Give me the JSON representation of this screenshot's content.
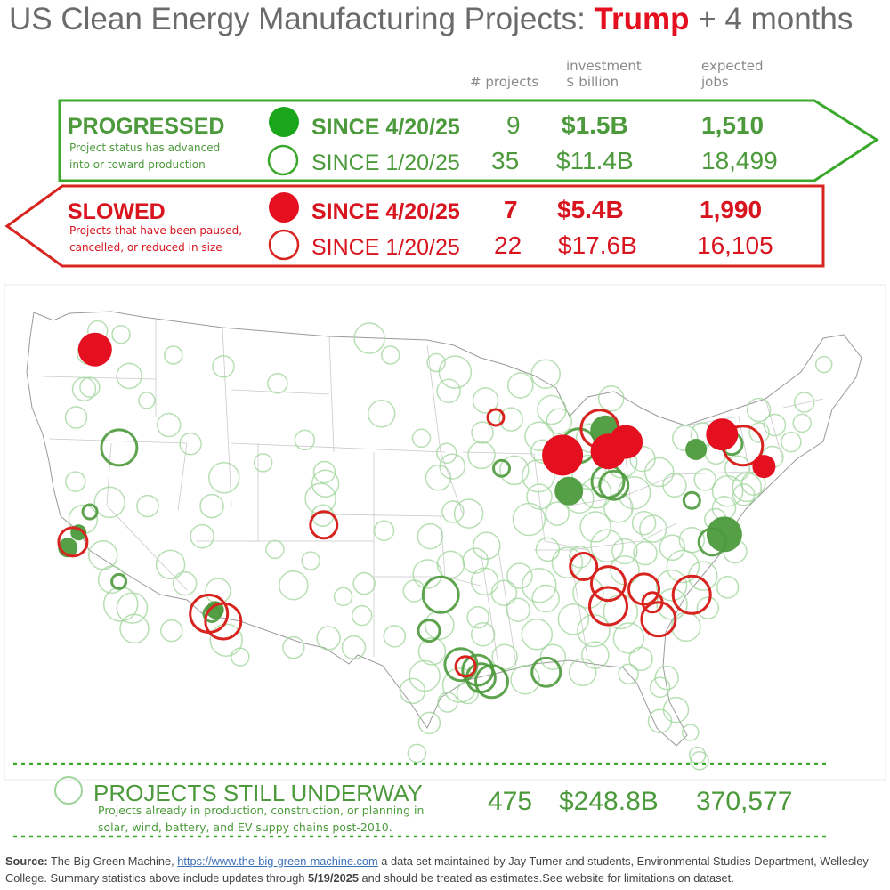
{
  "title": {
    "prefix": "US Clean Energy Manufacturing Projects: ",
    "highlight": "Trump",
    "suffix": " + 4 months"
  },
  "columns": {
    "projects": "# projects",
    "investment_line1": "investment",
    "investment_line2": "$ billion",
    "jobs_line1": "expected",
    "jobs_line2": "jobs"
  },
  "progressed": {
    "heading": "PROGRESSED",
    "desc_line1": "Project status has advanced",
    "desc_line2": "into or toward production",
    "rows": [
      {
        "label": "SINCE 4/20/25",
        "projects": "9",
        "investment": "$1.5B",
        "jobs": "1,510"
      },
      {
        "label": "SINCE 1/20/25",
        "projects": "35",
        "investment": "$11.4B",
        "jobs": "18,499"
      }
    ]
  },
  "slowed": {
    "heading": "SLOWED",
    "desc_line1": "Projects that have been paused,",
    "desc_line2": "cancelled, or reduced in size",
    "rows": [
      {
        "label": "SINCE 4/20/25",
        "projects": "7",
        "investment": "$5.4B",
        "jobs": "1,990"
      },
      {
        "label": "SINCE 1/20/25",
        "projects": "22",
        "investment": "$17.6B",
        "jobs": "16,105"
      }
    ]
  },
  "underway": {
    "heading": "PROJECTS STILL UNDERWAY",
    "desc_line1": "Projects already in production, construction, or planning in",
    "desc_line2": "solar, wind, battery, and EV suppy chains post-2010.",
    "projects": "475",
    "investment": "$248.8B",
    "jobs": "370,577"
  },
  "source": {
    "label": "Source:",
    "text1": " The Big Green Machine, ",
    "link": "https://www.the-big-green-machine.com",
    "text2": " a data set maintained by Jay Turner and students, Environmental Studies Department, Wellesley College. Summary statistics above include updates through ",
    "date": "5/19/2025",
    "text3": " and should be treated as estimates.See website for limitations on dataset."
  },
  "colors": {
    "green": "#4c9a3c",
    "green_light": "#9fd49a",
    "red": "#e4101f",
    "border_green": "#3aa82a",
    "border_red": "#d8241f"
  },
  "map_markers": {
    "slowed_recent": [
      {
        "lat": 47.6,
        "lon": -122.3,
        "r": 19
      },
      {
        "lat": 42.0,
        "lon": -87.8,
        "r": 23
      },
      {
        "lat": 42.2,
        "lon": -84.5,
        "r": 20
      },
      {
        "lat": 42.7,
        "lon": -83.2,
        "r": 19
      },
      {
        "lat": 43.1,
        "lon": -76.2,
        "r": 18
      },
      {
        "lat": 41.4,
        "lon": -73.5,
        "r": 13
      }
    ],
    "slowed_earlier": [
      {
        "lat": 43.4,
        "lon": -85.0,
        "r": 21
      },
      {
        "lat": 42.5,
        "lon": -74.8,
        "r": 22
      },
      {
        "lat": 38.3,
        "lon": -104.7,
        "r": 15
      },
      {
        "lat": 44.0,
        "lon": -92.5,
        "r": 9
      },
      {
        "lat": 37.4,
        "lon": -122.0,
        "r": 16
      },
      {
        "lat": 33.6,
        "lon": -112.2,
        "r": 21
      },
      {
        "lat": 33.2,
        "lon": -111.2,
        "r": 20
      },
      {
        "lat": 36.1,
        "lon": -86.8,
        "r": 15
      },
      {
        "lat": 35.2,
        "lon": -85.2,
        "r": 19
      },
      {
        "lat": 34.0,
        "lon": -85.3,
        "r": 21
      },
      {
        "lat": 34.9,
        "lon": -82.8,
        "r": 17
      },
      {
        "lat": 33.3,
        "lon": -82.0,
        "r": 19
      },
      {
        "lat": 34.6,
        "lon": -79.6,
        "r": 21
      },
      {
        "lat": 34.2,
        "lon": -82.3,
        "r": 11
      },
      {
        "lat": 30.8,
        "lon": -95.0,
        "r": 11
      }
    ],
    "progressed_recent": [
      {
        "lat": 43.3,
        "lon": -84.6,
        "r": 17
      },
      {
        "lat": 40.1,
        "lon": -87.5,
        "r": 16
      },
      {
        "lat": 42.3,
        "lon": -78.2,
        "r": 12
      },
      {
        "lat": 37.8,
        "lon": -76.9,
        "r": 20
      },
      {
        "lat": 37.1,
        "lon": -122.3,
        "r": 11
      },
      {
        "lat": 37.9,
        "lon": -121.7,
        "r": 9
      },
      {
        "lat": 33.8,
        "lon": -111.8,
        "r": 10
      }
    ],
    "progressed_earlier": [
      {
        "lat": 42.4,
        "lon": -119.6,
        "r": 20
      },
      {
        "lat": 42.5,
        "lon": -86.6,
        "r": 19
      },
      {
        "lat": 40.6,
        "lon": -84.7,
        "r": 18
      },
      {
        "lat": 40.4,
        "lon": -84.3,
        "r": 16
      },
      {
        "lat": 42.6,
        "lon": -75.6,
        "r": 12
      },
      {
        "lat": 41.3,
        "lon": -92.2,
        "r": 9
      },
      {
        "lat": 39.0,
        "lon": -121.1,
        "r": 8
      },
      {
        "lat": 39.6,
        "lon": -78.9,
        "r": 9
      },
      {
        "lat": 37.4,
        "lon": -77.8,
        "r": 15
      },
      {
        "lat": 34.6,
        "lon": -96.6,
        "r": 20
      },
      {
        "lat": 32.7,
        "lon": -97.4,
        "r": 12
      },
      {
        "lat": 30.9,
        "lon": -95.3,
        "r": 18
      },
      {
        "lat": 30.0,
        "lon": -93.3,
        "r": 18
      },
      {
        "lat": 30.6,
        "lon": -94.2,
        "r": 17
      },
      {
        "lat": 30.2,
        "lon": -94.0,
        "r": 16
      },
      {
        "lat": 30.5,
        "lon": -89.7,
        "r": 16
      },
      {
        "lat": 33.6,
        "lon": -112.0,
        "r": 9
      },
      {
        "lat": 35.3,
        "lon": -118.5,
        "r": 8
      }
    ],
    "underway": [
      {
        "lat": 47.4,
        "lon": -122.8,
        "r": 12
      },
      {
        "lat": 46.2,
        "lon": -119.5,
        "r": 14
      },
      {
        "lat": 47.3,
        "lon": -116.4,
        "r": 10
      },
      {
        "lat": 45.6,
        "lon": -122.3,
        "r": 11
      },
      {
        "lat": 44.9,
        "lon": -118.0,
        "r": 9
      },
      {
        "lat": 46.7,
        "lon": -112.6,
        "r": 12
      },
      {
        "lat": 48.2,
        "lon": -101.8,
        "r": 17
      },
      {
        "lat": 47.3,
        "lon": -100.2,
        "r": 10
      },
      {
        "lat": 46.4,
        "lon": -95.4,
        "r": 18
      },
      {
        "lat": 45.4,
        "lon": -95.9,
        "r": 13
      },
      {
        "lat": 44.2,
        "lon": -100.8,
        "r": 15
      },
      {
        "lat": 45.7,
        "lon": -90.6,
        "r": 14
      },
      {
        "lat": 46.3,
        "lon": -88.7,
        "r": 16
      },
      {
        "lat": 44.4,
        "lon": -88.4,
        "r": 16
      },
      {
        "lat": 43.9,
        "lon": -91.4,
        "r": 13
      },
      {
        "lat": 43.2,
        "lon": -93.5,
        "r": 12
      },
      {
        "lat": 42.9,
        "lon": -97.9,
        "r": 10
      },
      {
        "lat": 42.1,
        "lon": -96.1,
        "r": 11
      },
      {
        "lat": 41.4,
        "lon": -95.7,
        "r": 14
      },
      {
        "lat": 41.2,
        "lon": -91.3,
        "r": 16
      },
      {
        "lat": 42.2,
        "lon": -89.2,
        "r": 13
      },
      {
        "lat": 40.9,
        "lon": -89.6,
        "r": 18
      },
      {
        "lat": 41.1,
        "lon": -86.0,
        "r": 19
      },
      {
        "lat": 40.0,
        "lon": -85.6,
        "r": 17
      },
      {
        "lat": 39.7,
        "lon": -86.8,
        "r": 16
      },
      {
        "lat": 38.9,
        "lon": -88.4,
        "r": 13
      },
      {
        "lat": 39.2,
        "lon": -84.1,
        "r": 16
      },
      {
        "lat": 40.0,
        "lon": -82.9,
        "r": 18
      },
      {
        "lat": 41.1,
        "lon": -81.0,
        "r": 16
      },
      {
        "lat": 41.8,
        "lon": -82.1,
        "r": 14
      },
      {
        "lat": 40.4,
        "lon": -80.0,
        "r": 13
      },
      {
        "lat": 40.7,
        "lon": -77.8,
        "r": 12
      },
      {
        "lat": 41.3,
        "lon": -75.4,
        "r": 14
      },
      {
        "lat": 40.3,
        "lon": -74.9,
        "r": 16
      },
      {
        "lat": 40.1,
        "lon": -76.3,
        "r": 17
      },
      {
        "lat": 41.9,
        "lon": -72.8,
        "r": 12
      },
      {
        "lat": 42.7,
        "lon": -71.3,
        "r": 11
      },
      {
        "lat": 43.6,
        "lon": -72.3,
        "r": 12
      },
      {
        "lat": 44.4,
        "lon": -73.3,
        "r": 13
      },
      {
        "lat": 44.8,
        "lon": -69.9,
        "r": 11
      },
      {
        "lat": 43.2,
        "lon": -73.5,
        "r": 11
      },
      {
        "lat": 39.2,
        "lon": -76.7,
        "r": 13
      },
      {
        "lat": 38.1,
        "lon": -81.8,
        "r": 15
      },
      {
        "lat": 37.1,
        "lon": -80.6,
        "r": 14
      },
      {
        "lat": 36.1,
        "lon": -80.0,
        "r": 18
      },
      {
        "lat": 35.6,
        "lon": -78.7,
        "r": 16
      },
      {
        "lat": 35.1,
        "lon": -80.9,
        "r": 17
      },
      {
        "lat": 34.1,
        "lon": -81.0,
        "r": 17
      },
      {
        "lat": 32.9,
        "lon": -80.2,
        "r": 16
      },
      {
        "lat": 33.7,
        "lon": -84.5,
        "r": 19
      },
      {
        "lat": 32.3,
        "lon": -84.1,
        "r": 17
      },
      {
        "lat": 32.7,
        "lon": -86.4,
        "r": 18
      },
      {
        "lat": 33.3,
        "lon": -87.7,
        "r": 17
      },
      {
        "lat": 34.7,
        "lon": -86.6,
        "r": 17
      },
      {
        "lat": 35.1,
        "lon": -89.9,
        "r": 19
      },
      {
        "lat": 36.3,
        "lon": -87.9,
        "r": 17
      },
      {
        "lat": 37.2,
        "lon": -85.1,
        "r": 18
      },
      {
        "lat": 38.2,
        "lon": -85.8,
        "r": 17
      },
      {
        "lat": 36.9,
        "lon": -83.9,
        "r": 14
      },
      {
        "lat": 35.9,
        "lon": -84.0,
        "r": 16
      },
      {
        "lat": 36.6,
        "lon": -87.0,
        "r": 12
      },
      {
        "lat": 31.4,
        "lon": -86.4,
        "r": 15
      },
      {
        "lat": 30.5,
        "lon": -87.3,
        "r": 15
      },
      {
        "lat": 31.2,
        "lon": -83.4,
        "r": 13
      },
      {
        "lat": 30.2,
        "lon": -81.8,
        "r": 13
      },
      {
        "lat": 28.5,
        "lon": -81.4,
        "r": 14
      },
      {
        "lat": 27.3,
        "lon": -80.6,
        "r": 9
      },
      {
        "lat": 26.1,
        "lon": -80.3,
        "r": 9
      },
      {
        "lat": 32.5,
        "lon": -90.2,
        "r": 17
      },
      {
        "lat": 31.3,
        "lon": -89.2,
        "r": 14
      },
      {
        "lat": 34.4,
        "lon": -89.5,
        "r": 15
      },
      {
        "lat": 33.8,
        "lon": -91.4,
        "r": 13
      },
      {
        "lat": 35.6,
        "lon": -91.2,
        "r": 14
      },
      {
        "lat": 35.3,
        "lon": -93.6,
        "r": 15
      },
      {
        "lat": 36.4,
        "lon": -94.2,
        "r": 14
      },
      {
        "lat": 37.2,
        "lon": -93.4,
        "r": 15
      },
      {
        "lat": 38.6,
        "lon": -90.4,
        "r": 18
      },
      {
        "lat": 38.9,
        "lon": -94.6,
        "r": 16
      },
      {
        "lat": 37.7,
        "lon": -97.3,
        "r": 14
      },
      {
        "lat": 35.7,
        "lon": -97.5,
        "r": 16
      },
      {
        "lat": 36.2,
        "lon": -95.9,
        "r": 15
      },
      {
        "lat": 34.8,
        "lon": -98.4,
        "r": 12
      },
      {
        "lat": 33.0,
        "lon": -96.7,
        "r": 16
      },
      {
        "lat": 31.6,
        "lon": -97.2,
        "r": 15
      },
      {
        "lat": 30.3,
        "lon": -97.7,
        "r": 17
      },
      {
        "lat": 29.5,
        "lon": -98.5,
        "r": 14
      },
      {
        "lat": 29.8,
        "lon": -95.4,
        "r": 19
      },
      {
        "lat": 30.1,
        "lon": -91.1,
        "r": 16
      },
      {
        "lat": 31.3,
        "lon": -92.4,
        "r": 14
      },
      {
        "lat": 32.5,
        "lon": -93.8,
        "r": 13
      },
      {
        "lat": 27.8,
        "lon": -97.4,
        "r": 12
      },
      {
        "lat": 26.2,
        "lon": -98.2,
        "r": 10
      },
      {
        "lat": 31.8,
        "lon": -102.4,
        "r": 13
      },
      {
        "lat": 35.2,
        "lon": -101.8,
        "r": 12
      },
      {
        "lat": 32.4,
        "lon": -99.7,
        "r": 12
      },
      {
        "lat": 31.8,
        "lon": -106.4,
        "r": 12
      },
      {
        "lat": 35.1,
        "lon": -106.6,
        "r": 16
      },
      {
        "lat": 32.3,
        "lon": -104.1,
        "r": 13
      },
      {
        "lat": 36.4,
        "lon": -105.5,
        "r": 10
      },
      {
        "lat": 39.7,
        "lon": -105.0,
        "r": 17
      },
      {
        "lat": 40.5,
        "lon": -104.7,
        "r": 15
      },
      {
        "lat": 38.8,
        "lon": -104.8,
        "r": 12
      },
      {
        "lat": 41.1,
        "lon": -104.8,
        "r": 12
      },
      {
        "lat": 42.8,
        "lon": -106.3,
        "r": 11
      },
      {
        "lat": 40.8,
        "lon": -111.9,
        "r": 17
      },
      {
        "lat": 39.3,
        "lon": -112.6,
        "r": 13
      },
      {
        "lat": 37.7,
        "lon": -113.1,
        "r": 13
      },
      {
        "lat": 43.6,
        "lon": -116.2,
        "r": 13
      },
      {
        "lat": 42.6,
        "lon": -114.5,
        "r": 12
      },
      {
        "lat": 39.5,
        "lon": -119.8,
        "r": 17
      },
      {
        "lat": 39.3,
        "lon": -117.1,
        "r": 12
      },
      {
        "lat": 36.2,
        "lon": -115.1,
        "r": 16
      },
      {
        "lat": 35.2,
        "lon": -114.0,
        "r": 13
      },
      {
        "lat": 34.8,
        "lon": -111.7,
        "r": 14
      },
      {
        "lat": 32.2,
        "lon": -110.9,
        "r": 18
      },
      {
        "lat": 32.7,
        "lon": -114.6,
        "r": 12
      },
      {
        "lat": 33.9,
        "lon": -117.4,
        "r": 17
      },
      {
        "lat": 34.1,
        "lon": -118.2,
        "r": 19
      },
      {
        "lat": 32.8,
        "lon": -117.1,
        "r": 16
      },
      {
        "lat": 35.4,
        "lon": -119.0,
        "r": 15
      },
      {
        "lat": 36.7,
        "lon": -119.8,
        "r": 16
      },
      {
        "lat": 38.6,
        "lon": -121.5,
        "r": 16
      },
      {
        "lat": 40.6,
        "lon": -122.4,
        "r": 11
      },
      {
        "lat": 44.0,
        "lon": -123.0,
        "r": 12
      },
      {
        "lat": 45.5,
        "lon": -122.7,
        "r": 13
      },
      {
        "lat": 48.4,
        "lon": -120.5,
        "r": 10
      },
      {
        "lat": 46.9,
        "lon": -96.8,
        "r": 10
      },
      {
        "lat": 44.9,
        "lon": -93.2,
        "r": 14
      },
      {
        "lat": 42.0,
        "lon": -93.6,
        "r": 15
      },
      {
        "lat": 40.8,
        "lon": -96.7,
        "r": 14
      },
      {
        "lat": 39.0,
        "lon": -95.7,
        "r": 12
      },
      {
        "lat": 38.0,
        "lon": -100.5,
        "r": 11
      },
      {
        "lat": 43.0,
        "lon": -89.4,
        "r": 16
      },
      {
        "lat": 43.8,
        "lon": -87.9,
        "r": 14
      },
      {
        "lat": 45.0,
        "lon": -84.0,
        "r": 14
      },
      {
        "lat": 42.9,
        "lon": -85.7,
        "r": 16
      },
      {
        "lat": 41.6,
        "lon": -83.6,
        "r": 17
      },
      {
        "lat": 42.9,
        "lon": -78.9,
        "r": 14
      },
      {
        "lat": 42.1,
        "lon": -76.8,
        "r": 12
      },
      {
        "lat": 43.1,
        "lon": -77.6,
        "r": 13
      },
      {
        "lat": 40.5,
        "lon": -74.4,
        "r": 13
      },
      {
        "lat": 39.9,
        "lon": -75.2,
        "r": 12
      },
      {
        "lat": 38.6,
        "lon": -77.4,
        "r": 12
      },
      {
        "lat": 37.5,
        "lon": -79.2,
        "r": 14
      },
      {
        "lat": 36.9,
        "lon": -76.3,
        "r": 13
      },
      {
        "lat": 35.0,
        "lon": -77.1,
        "r": 12
      },
      {
        "lat": 33.9,
        "lon": -78.6,
        "r": 12
      },
      {
        "lat": 36.8,
        "lon": -82.5,
        "r": 13
      },
      {
        "lat": 38.4,
        "lon": -82.4,
        "r": 13
      },
      {
        "lat": 39.8,
        "lon": -89.6,
        "r": 14
      },
      {
        "lat": 37.0,
        "lon": -89.2,
        "r": 13
      },
      {
        "lat": 34.7,
        "lon": -92.3,
        "r": 14
      },
      {
        "lat": 29.4,
        "lon": -94.9,
        "r": 12
      },
      {
        "lat": 28.9,
        "lon": -96.2,
        "r": 11
      },
      {
        "lat": 33.4,
        "lon": -94.1,
        "r": 12
      },
      {
        "lat": 33.5,
        "lon": -101.9,
        "r": 11
      },
      {
        "lat": 34.5,
        "lon": -103.2,
        "r": 10
      },
      {
        "lat": 37.0,
        "lon": -108.0,
        "r": 10
      },
      {
        "lat": 31.3,
        "lon": -109.9,
        "r": 10
      },
      {
        "lat": 41.6,
        "lon": -109.2,
        "r": 10
      },
      {
        "lat": 45.8,
        "lon": -108.5,
        "r": 11
      },
      {
        "lat": 48.6,
        "lon": -122.3,
        "r": 11
      },
      {
        "lat": 25.8,
        "lon": -80.2,
        "r": 10
      },
      {
        "lat": 27.9,
        "lon": -82.5,
        "r": 13
      },
      {
        "lat": 29.7,
        "lon": -82.3,
        "r": 11
      },
      {
        "lat": 30.4,
        "lon": -84.3,
        "r": 11
      },
      {
        "lat": 43.7,
        "lon": -70.3,
        "r": 10
      },
      {
        "lat": 46.8,
        "lon": -68.0,
        "r": 9
      }
    ]
  }
}
